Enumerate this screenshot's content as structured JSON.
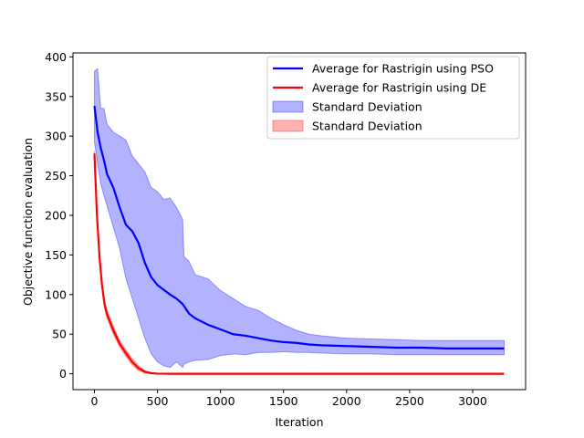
{
  "chart_data": {
    "type": "line",
    "xlabel": "Iteration",
    "ylabel": "Objective function evaluation",
    "xlim": [
      -170,
      3420
    ],
    "ylim": [
      -20,
      405
    ],
    "xticks": [
      0,
      500,
      1000,
      1500,
      2000,
      2500,
      3000
    ],
    "yticks": [
      0,
      50,
      100,
      150,
      200,
      250,
      300,
      350,
      400
    ],
    "grid": false,
    "legend_position": "top-right",
    "series": [
      {
        "name": "Average for Rastrigin using PSO",
        "kind": "line",
        "color": "#0000ff",
        "x": [
          0,
          25,
          50,
          75,
          100,
          150,
          200,
          250,
          300,
          350,
          400,
          450,
          500,
          550,
          600,
          650,
          700,
          750,
          800,
          900,
          1000,
          1100,
          1200,
          1300,
          1400,
          1500,
          1600,
          1700,
          1800,
          2000,
          2200,
          2400,
          2600,
          2800,
          3000,
          3250
        ],
        "y": [
          338,
          305,
          285,
          270,
          252,
          235,
          210,
          188,
          180,
          165,
          140,
          122,
          112,
          106,
          100,
          95,
          88,
          76,
          70,
          62,
          56,
          50,
          48,
          45,
          42,
          40,
          39,
          37,
          36,
          35,
          34,
          33,
          33,
          32,
          32,
          32
        ]
      },
      {
        "name": "Average for Rastrigin using DE",
        "kind": "line",
        "color": "#ff0000",
        "x": [
          0,
          20,
          40,
          60,
          80,
          100,
          150,
          200,
          250,
          300,
          350,
          400,
          450,
          500,
          600,
          800,
          1000,
          1500,
          2000,
          2500,
          3000,
          3250
        ],
        "y": [
          278,
          200,
          148,
          112,
          88,
          75,
          55,
          38,
          26,
          15,
          7,
          2.5,
          0.8,
          0.2,
          0,
          0,
          0,
          0,
          0,
          0,
          0,
          0
        ]
      },
      {
        "name": "Standard Deviation",
        "kind": "band",
        "color": "#0000ff",
        "opacity": 0.3,
        "x": [
          0,
          25,
          50,
          75,
          100,
          150,
          200,
          250,
          300,
          350,
          400,
          450,
          500,
          550,
          600,
          650,
          700,
          710,
          750,
          800,
          900,
          1000,
          1100,
          1200,
          1300,
          1400,
          1500,
          1600,
          1700,
          1800,
          2000,
          2200,
          2400,
          2600,
          2800,
          3000,
          3250
        ],
        "upper": [
          382,
          385,
          335,
          335,
          315,
          305,
          300,
          295,
          275,
          265,
          255,
          235,
          230,
          220,
          222,
          210,
          195,
          148,
          142,
          125,
          120,
          105,
          95,
          85,
          80,
          70,
          62,
          55,
          50,
          48,
          45,
          44,
          43,
          42,
          42,
          42,
          42
        ],
        "lower": [
          293,
          265,
          240,
          225,
          212,
          185,
          158,
          120,
          95,
          70,
          45,
          25,
          15,
          10,
          8,
          15,
          8,
          12,
          15,
          17,
          18,
          23,
          25,
          24,
          27,
          27,
          28,
          27,
          27,
          26,
          25,
          25,
          24,
          24,
          24,
          24,
          24
        ]
      },
      {
        "name": "Standard Deviation",
        "kind": "band",
        "color": "#ff0000",
        "opacity": 0.3,
        "x": [
          0,
          20,
          40,
          60,
          80,
          100,
          150,
          200,
          250,
          300,
          350,
          400,
          450,
          500,
          600,
          800,
          1000,
          1500,
          2000,
          2500,
          3000,
          3250
        ],
        "upper": [
          281,
          204,
          152,
          117,
          93,
          80,
          60,
          42,
          30,
          19,
          10,
          4,
          1.5,
          0.5,
          0,
          0,
          0,
          0,
          0,
          0,
          0,
          0
        ],
        "lower": [
          275,
          196,
          144,
          107,
          83,
          70,
          50,
          34,
          22,
          11,
          4,
          1,
          0.2,
          0,
          0,
          0,
          0,
          0,
          0,
          0,
          0,
          0
        ]
      }
    ]
  }
}
